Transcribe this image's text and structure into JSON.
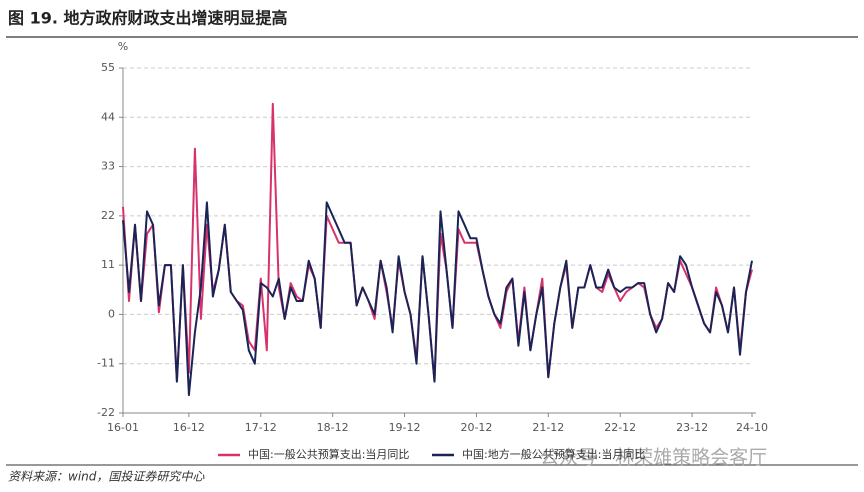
{
  "chart_data": {
    "type": "line",
    "title": "图 19. 地方政府财政支出增速明显提高",
    "y_unit": "%",
    "source": "资料来源：wind，国投证券研究中心",
    "watermark": "公众号 · 林荣雄策略会客厅",
    "categories": [
      "16-01",
      null,
      null,
      null,
      null,
      null,
      null,
      null,
      null,
      null,
      null,
      "16-12",
      null,
      null,
      null,
      null,
      null,
      null,
      null,
      null,
      null,
      null,
      null,
      "17-12",
      null,
      null,
      null,
      null,
      null,
      null,
      null,
      null,
      null,
      null,
      null,
      "18-12",
      null,
      null,
      null,
      null,
      null,
      null,
      null,
      null,
      null,
      null,
      null,
      "19-12",
      null,
      null,
      null,
      null,
      null,
      null,
      null,
      null,
      null,
      null,
      null,
      "20-12",
      null,
      null,
      null,
      null,
      null,
      null,
      null,
      null,
      null,
      null,
      null,
      "21-12",
      null,
      null,
      null,
      null,
      null,
      null,
      null,
      null,
      null,
      null,
      null,
      "22-12",
      null,
      null,
      null,
      null,
      null,
      null,
      null,
      null,
      null,
      null,
      null,
      "23-12",
      null,
      null,
      null,
      null,
      null,
      null,
      null,
      null,
      null,
      "24-10"
    ],
    "series": [
      {
        "name": "中国:一般公共预算支出:当月同比",
        "color": "#d6336c",
        "values": [
          24,
          3,
          20,
          3,
          18,
          20,
          0.5,
          11,
          11,
          -15,
          11,
          -13,
          37,
          -1,
          20,
          5,
          10,
          20,
          5,
          3,
          2,
          -6,
          -8,
          8,
          -8,
          47,
          6,
          -1,
          7,
          4,
          3,
          11,
          8,
          -3,
          22,
          19,
          16,
          16,
          16,
          2,
          6,
          3,
          -1,
          12,
          5,
          -3,
          12,
          5,
          0,
          -10,
          13,
          0,
          -15,
          18,
          10,
          -3,
          19,
          16,
          16,
          16,
          10,
          4,
          0,
          -3,
          5,
          8,
          -6,
          6,
          -8,
          0,
          8,
          -14,
          -2,
          6,
          11,
          -3,
          6,
          6,
          11,
          6,
          5,
          9,
          6,
          3,
          5,
          6,
          7,
          6,
          0,
          -3,
          -1,
          7,
          5,
          12,
          9,
          6,
          2,
          -2,
          -4,
          6,
          2,
          -4,
          6,
          -8,
          5,
          10
        ]
      },
      {
        "name": "中国:地方一般公共预算支出:当月同比",
        "color": "#1a2456",
        "values": [
          21,
          5,
          20,
          3,
          23,
          20,
          2,
          11,
          11,
          -15,
          11,
          -18,
          -4,
          6,
          25,
          4,
          10,
          20,
          5,
          3,
          1,
          -8,
          -11,
          7,
          6,
          4,
          8,
          -1,
          6,
          3,
          3,
          12,
          8,
          -3,
          25,
          22,
          19,
          16,
          16,
          2,
          6,
          3,
          0,
          12,
          6,
          -4,
          13,
          5,
          0,
          -11,
          13,
          0,
          -15,
          23,
          10,
          -3,
          23,
          20,
          17,
          17,
          10,
          4,
          0,
          -2,
          6,
          8,
          -7,
          5,
          -8,
          0,
          6,
          -14,
          -2,
          6,
          12,
          -3,
          6,
          6,
          11,
          6,
          6,
          10,
          6,
          5,
          6,
          6,
          7,
          7,
          0,
          -4,
          -1,
          7,
          5,
          13,
          11,
          6,
          2,
          -2,
          -4,
          5,
          2,
          -4,
          6,
          -9,
          5,
          12
        ]
      }
    ],
    "ylim": [
      -22,
      55
    ],
    "yticks": [
      -22,
      -11,
      0,
      11,
      22,
      33,
      44,
      55
    ],
    "grid": true
  }
}
